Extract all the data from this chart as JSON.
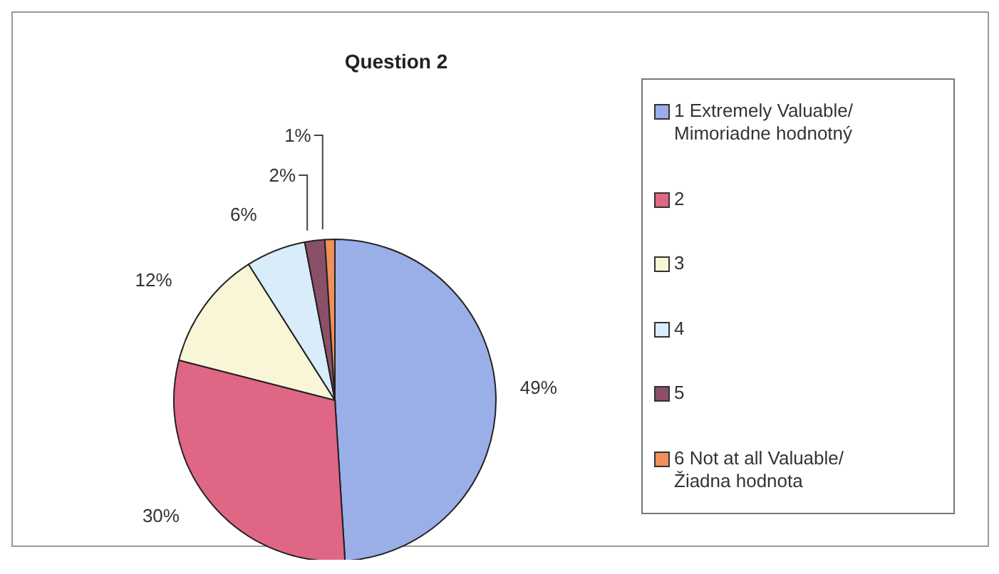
{
  "chart_data": {
    "type": "pie",
    "title": "Question 2",
    "categories": [
      "1 Extremely Valuable/ Mimoriadne hodnotný",
      "2",
      "3",
      "4",
      "5",
      "6 Not at all Valuable/ Žiadna hodnota"
    ],
    "values": [
      49,
      30,
      12,
      6,
      2,
      1
    ],
    "colors": [
      "#9aaee8",
      "#e06685",
      "#f8f6d6",
      "#d8ecfa",
      "#8a5068",
      "#f0905a"
    ],
    "value_labels": [
      "49%",
      "30%",
      "12%",
      "6%",
      "2%",
      "1%"
    ],
    "legend": "right"
  }
}
